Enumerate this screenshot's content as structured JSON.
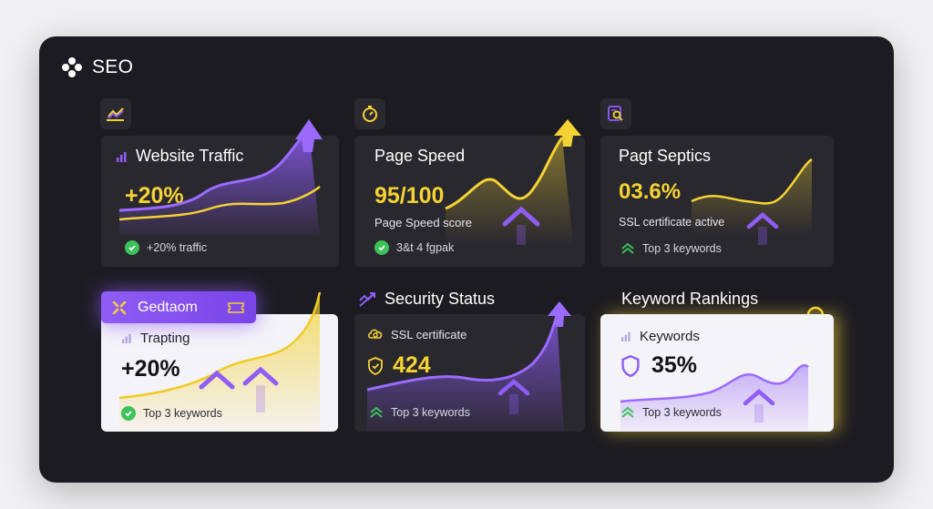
{
  "brand": {
    "name": "SEO"
  },
  "cards": {
    "traffic": {
      "title": "Website Traffic",
      "value": "+20%",
      "footer": "+20% traffic"
    },
    "speed": {
      "title": "Page Speed",
      "value": "95/100",
      "subtitle": "Page Speed score",
      "footer": "3&t 4 fgpak"
    },
    "septics": {
      "title": "Pagt Septics",
      "value": "03.6%",
      "subtitle": "SSL certificate active",
      "footer": "Top 3 keywords"
    },
    "trapting": {
      "tag": "Gedtaom",
      "title": "Trapting",
      "value": "+20%",
      "footer": "Top 3 keywords"
    },
    "security": {
      "header": "Security Status",
      "title": "SSL certificate",
      "value": "424",
      "footer": "Top 3 keywords"
    },
    "keywords": {
      "header": "Keyword Rankings",
      "title": "Keywords",
      "value": "35%",
      "footer": "Top 3 keywords"
    }
  },
  "colors": {
    "purple": "#8f5cf5",
    "yellow": "#f5d233",
    "green": "#3dc25a",
    "panel": "#1c1b21"
  },
  "icons": [
    "brand-logo-icon",
    "trend-chart-icon",
    "stopwatch-icon",
    "search-document-icon",
    "bar-signal-icon",
    "check-icon",
    "chevron-up-double-icon",
    "shield-check-icon",
    "cloud-gear-icon",
    "magnifier-icon"
  ]
}
